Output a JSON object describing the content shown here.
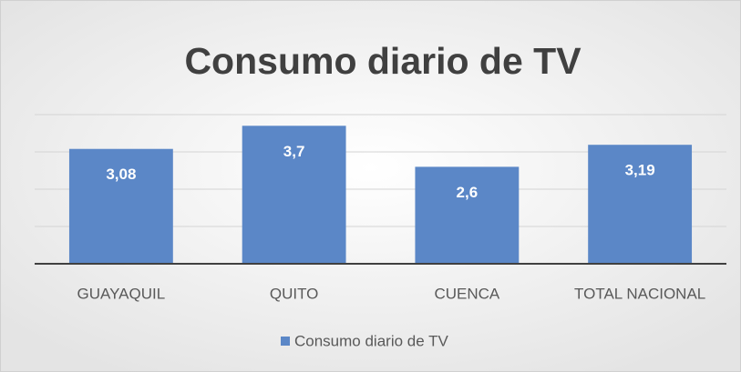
{
  "chart_data": {
    "type": "bar",
    "title": "Consumo diario de TV",
    "categories": [
      "GUAYAQUIL",
      "QUITO",
      "CUENCA",
      "TOTAL NACIONAL"
    ],
    "series": [
      {
        "name": "Consumo diario de TV",
        "color": "#5b87c7",
        "values": [
          3.08,
          3.7,
          2.6,
          3.19
        ],
        "value_labels": [
          "3,08",
          "3,7",
          "2,6",
          "3,19"
        ]
      }
    ],
    "ylim": [
      0,
      4
    ],
    "yticks": [
      0,
      1,
      2,
      3,
      4
    ],
    "grid": true,
    "legend": "bottom"
  }
}
